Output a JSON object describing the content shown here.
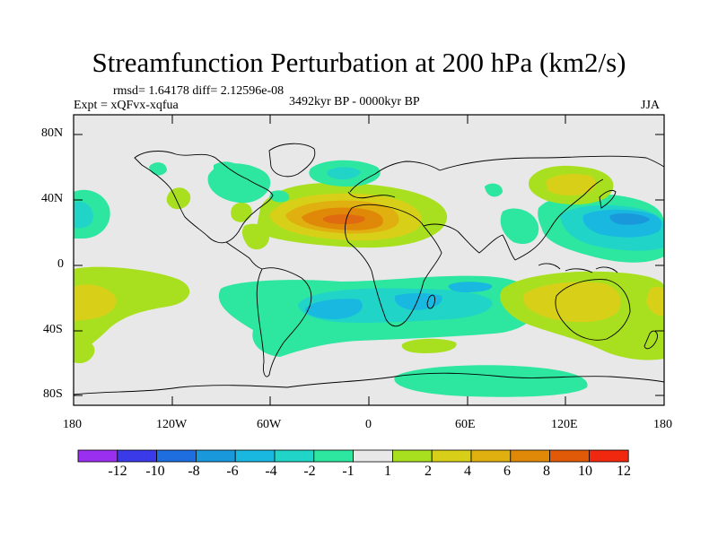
{
  "title": "Streamfunction Perturbation at 200 hPa (km2/s)",
  "stats": "rmsd= 1.64178 diff= 2.12596e-08",
  "experiment": "Expt = xQFvx-xqfua",
  "period": "3492kyr BP - 0000kyr BP",
  "season": "JJA",
  "lat_labels": [
    "80N",
    "40N",
    "0",
    "40S",
    "80S"
  ],
  "lon_labels": [
    "180",
    "120W",
    "60W",
    "0",
    "60E",
    "120E",
    "180"
  ],
  "colorbar": {
    "labels": [
      "-12",
      "-10",
      "-8",
      "-6",
      "-4",
      "-2",
      "-1",
      "1",
      "2",
      "4",
      "6",
      "8",
      "10",
      "12"
    ],
    "colors": [
      "#9b2ff0",
      "#3a3ae8",
      "#1e6ee0",
      "#1a98dc",
      "#19b8e0",
      "#20d4c8",
      "#2de6a0",
      "#e8e8e8",
      "#a8e020",
      "#d8d018",
      "#e0b010",
      "#e08808",
      "#e05a08",
      "#f02810"
    ]
  },
  "colors": {
    "background": "#e8e8e8",
    "frame": "#000000",
    "coast": "#000000"
  }
}
